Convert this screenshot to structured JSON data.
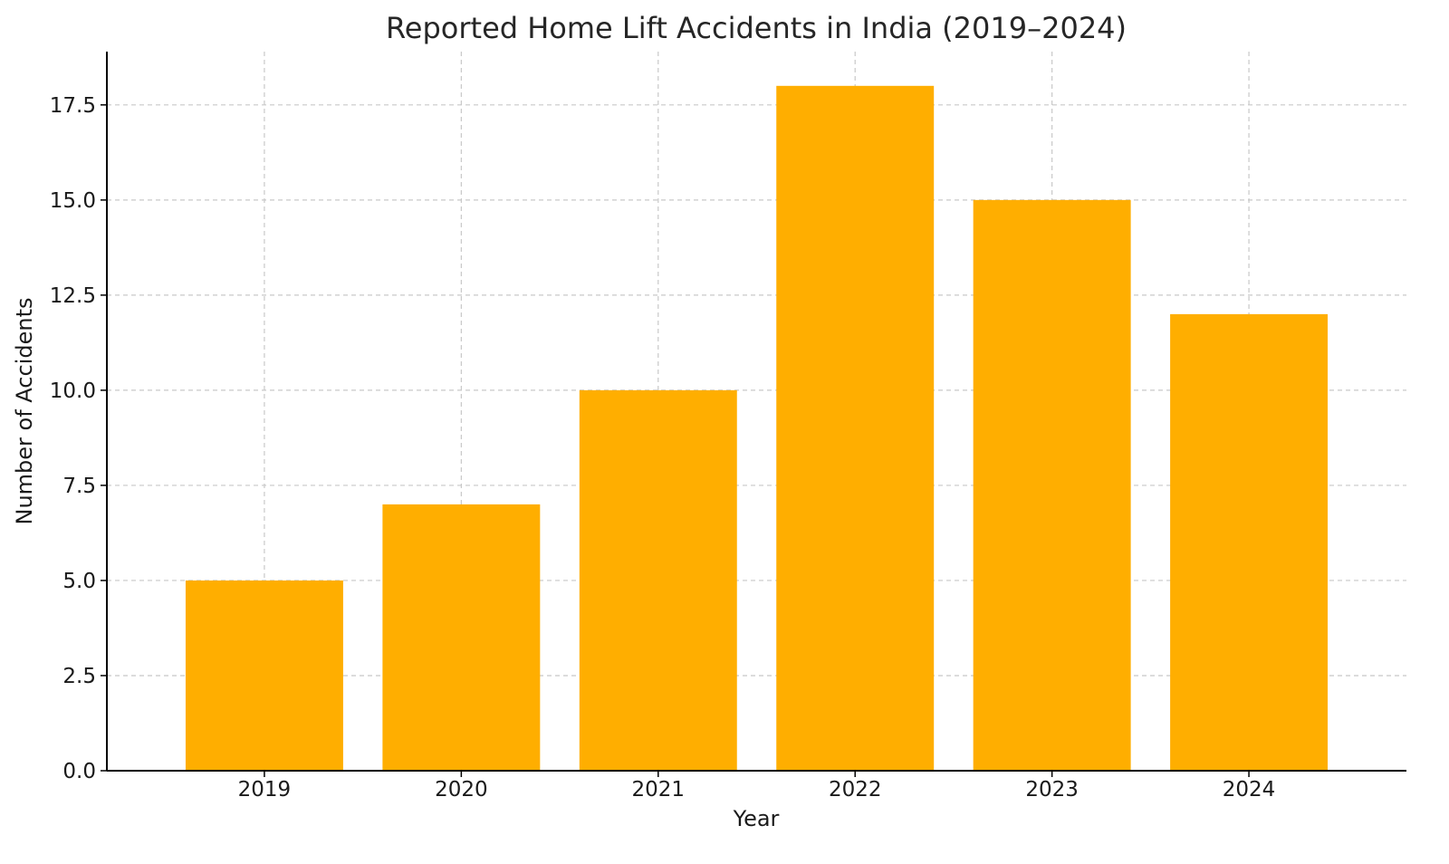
{
  "chart_data": {
    "type": "bar",
    "title": "Reported Home Lift Accidents in India (2019–2024)",
    "xlabel": "Year",
    "ylabel": "Number of Accidents",
    "categories": [
      "2019",
      "2020",
      "2021",
      "2022",
      "2023",
      "2024"
    ],
    "values": [
      5,
      7,
      10,
      18,
      15,
      12
    ],
    "ylim": [
      0,
      18.9
    ],
    "yticks": [
      0,
      2.5,
      5,
      7.5,
      10,
      12.5,
      15,
      17.5
    ],
    "ytick_labels": [
      "0.0",
      "2.5",
      "5.0",
      "7.5",
      "10.0",
      "12.5",
      "15.0",
      "17.5"
    ],
    "grid": true,
    "bar_color": "#ffae00"
  }
}
